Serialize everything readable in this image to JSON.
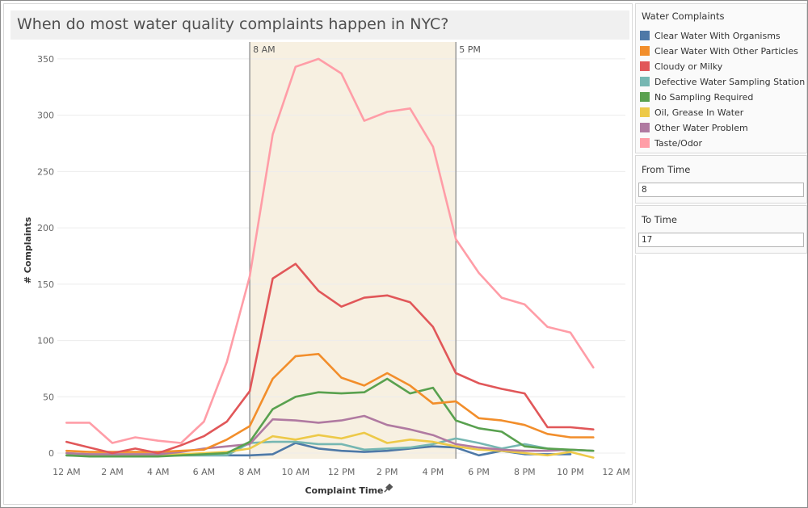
{
  "title": "When do most water quality complaints happen in NYC?",
  "legend": {
    "title": "Water Complaints",
    "items": [
      {
        "label": "Clear Water With Organisms",
        "color": "#4e79a7"
      },
      {
        "label": "Clear Water With Other Particles",
        "color": "#f28e2b"
      },
      {
        "label": "Cloudy or Milky",
        "color": "#e15759"
      },
      {
        "label": "Defective Water Sampling Station",
        "color": "#76b7b2"
      },
      {
        "label": "No Sampling Required",
        "color": "#59a14f"
      },
      {
        "label": "Oil, Grease In Water",
        "color": "#edc948"
      },
      {
        "label": "Other Water Problem",
        "color": "#b07aa1"
      },
      {
        "label": "Taste/Odor",
        "color": "#ff9da7"
      }
    ]
  },
  "filters": {
    "from": {
      "title": "From Time",
      "value": "8"
    },
    "to": {
      "title": "To Time",
      "value": "17"
    }
  },
  "chart_data": {
    "type": "line",
    "xlabel": "Complaint Time",
    "ylabel": "# Complaints",
    "ylim": [
      -5,
      365
    ],
    "xlim": [
      -0.4,
      24.4
    ],
    "y_ticks": [
      0,
      50,
      100,
      150,
      200,
      250,
      300,
      350
    ],
    "x_ticks": [
      {
        "x": 0,
        "label": "12 AM"
      },
      {
        "x": 2,
        "label": "2 AM"
      },
      {
        "x": 4,
        "label": "4 AM"
      },
      {
        "x": 6,
        "label": "6 AM"
      },
      {
        "x": 8,
        "label": "8 AM"
      },
      {
        "x": 10,
        "label": "10 AM"
      },
      {
        "x": 12,
        "label": "12 PM"
      },
      {
        "x": 14,
        "label": "2 PM"
      },
      {
        "x": 16,
        "label": "4 PM"
      },
      {
        "x": 18,
        "label": "6 PM"
      },
      {
        "x": 20,
        "label": "8 PM"
      },
      {
        "x": 22,
        "label": "10 PM"
      },
      {
        "x": 24,
        "label": "12 AM"
      }
    ],
    "highlight": {
      "from": 8,
      "to": 17,
      "from_label": "8 AM",
      "to_label": "5 PM",
      "color": "#f7f0e1"
    },
    "gridlines": true,
    "series": [
      {
        "name": "Taste/Odor",
        "color": "#ff9da7",
        "x": [
          0,
          1,
          2,
          3,
          4,
          5,
          6,
          7,
          8,
          9,
          10,
          11,
          12,
          13,
          14,
          15,
          16,
          17,
          18,
          19,
          20,
          21,
          22,
          23
        ],
        "values": [
          27,
          27,
          9,
          14,
          11,
          9,
          28,
          81,
          157,
          283,
          343,
          350,
          337,
          295,
          303,
          306,
          272,
          190,
          160,
          138,
          132,
          112,
          107,
          76
        ]
      },
      {
        "name": "Cloudy or Milky",
        "color": "#e15759",
        "x": [
          0,
          1,
          2,
          3,
          4,
          5,
          6,
          7,
          8,
          9,
          10,
          11,
          12,
          13,
          14,
          15,
          16,
          17,
          18,
          19,
          20,
          21,
          22,
          23
        ],
        "values": [
          10,
          5,
          0,
          4,
          0,
          7,
          15,
          28,
          55,
          155,
          168,
          144,
          130,
          138,
          140,
          134,
          112,
          71,
          62,
          57,
          53,
          23,
          23,
          21
        ]
      },
      {
        "name": "Clear Water With Other Particles",
        "color": "#f28e2b",
        "x": [
          0,
          1,
          2,
          3,
          4,
          5,
          6,
          7,
          8,
          9,
          10,
          11,
          12,
          13,
          14,
          15,
          16,
          17,
          18,
          19,
          20,
          21,
          22,
          23
        ],
        "values": [
          2,
          1,
          1,
          1,
          1,
          2,
          3,
          12,
          24,
          66,
          86,
          88,
          67,
          60,
          71,
          60,
          44,
          46,
          31,
          29,
          25,
          17,
          14,
          14
        ]
      },
      {
        "name": "No Sampling Required",
        "color": "#59a14f",
        "x": [
          0,
          1,
          2,
          3,
          4,
          5,
          6,
          7,
          8,
          9,
          10,
          11,
          12,
          13,
          14,
          15,
          16,
          17,
          18,
          19,
          20,
          21,
          22,
          23
        ],
        "values": [
          -2,
          -3,
          -3,
          -3,
          -3,
          -2,
          -1,
          0,
          10,
          39,
          50,
          54,
          53,
          54,
          66,
          53,
          58,
          29,
          22,
          19,
          6,
          4,
          3,
          2
        ]
      },
      {
        "name": "Other Water Problem",
        "color": "#b07aa1",
        "x": [
          0,
          1,
          2,
          3,
          4,
          5,
          6,
          7,
          8,
          9,
          10,
          11,
          12,
          13,
          14,
          15,
          16,
          17,
          18,
          19,
          20,
          21,
          22,
          23
        ],
        "values": [
          0,
          -1,
          -1,
          -1,
          -1,
          1,
          4,
          6,
          8,
          30,
          29,
          27,
          29,
          33,
          25,
          21,
          16,
          8,
          5,
          3,
          2,
          2,
          3,
          2
        ]
      },
      {
        "name": "Oil, Grease In Water",
        "color": "#edc948",
        "x": [
          0,
          1,
          2,
          3,
          4,
          5,
          6,
          7,
          8,
          9,
          10,
          11,
          12,
          13,
          14,
          15,
          16,
          17,
          18,
          19,
          20,
          21,
          22,
          23
        ],
        "values": [
          0,
          -1,
          -1,
          -1,
          -1,
          -1,
          0,
          1,
          4,
          15,
          12,
          16,
          13,
          18,
          9,
          12,
          10,
          6,
          3,
          2,
          0,
          -2,
          1,
          -4
        ]
      },
      {
        "name": "Defective Water Sampling Station",
        "color": "#76b7b2",
        "x": [
          0,
          1,
          2,
          3,
          4,
          5,
          6,
          7,
          8,
          9,
          10,
          11,
          12,
          13,
          14,
          15,
          16,
          17,
          18,
          19,
          20,
          21,
          22
        ],
        "values": [
          -2,
          -2,
          -2,
          -2,
          -2,
          -2,
          -2,
          -2,
          9,
          10,
          10,
          8,
          8,
          3,
          4,
          5,
          8,
          13,
          9,
          4,
          8,
          4,
          2
        ]
      },
      {
        "name": "Clear Water With Organisms",
        "color": "#4e79a7",
        "x": [
          0,
          1,
          2,
          3,
          4,
          5,
          6,
          7,
          8,
          9,
          10,
          11,
          12,
          13,
          14,
          15,
          16,
          17,
          18,
          19,
          20,
          21,
          22
        ],
        "values": [
          -2,
          -2,
          -2,
          -2,
          -2,
          -2,
          -2,
          -2,
          -2,
          -1,
          9,
          4,
          2,
          1,
          2,
          4,
          6,
          5,
          -2,
          2,
          -1,
          -1,
          -1
        ]
      }
    ]
  }
}
